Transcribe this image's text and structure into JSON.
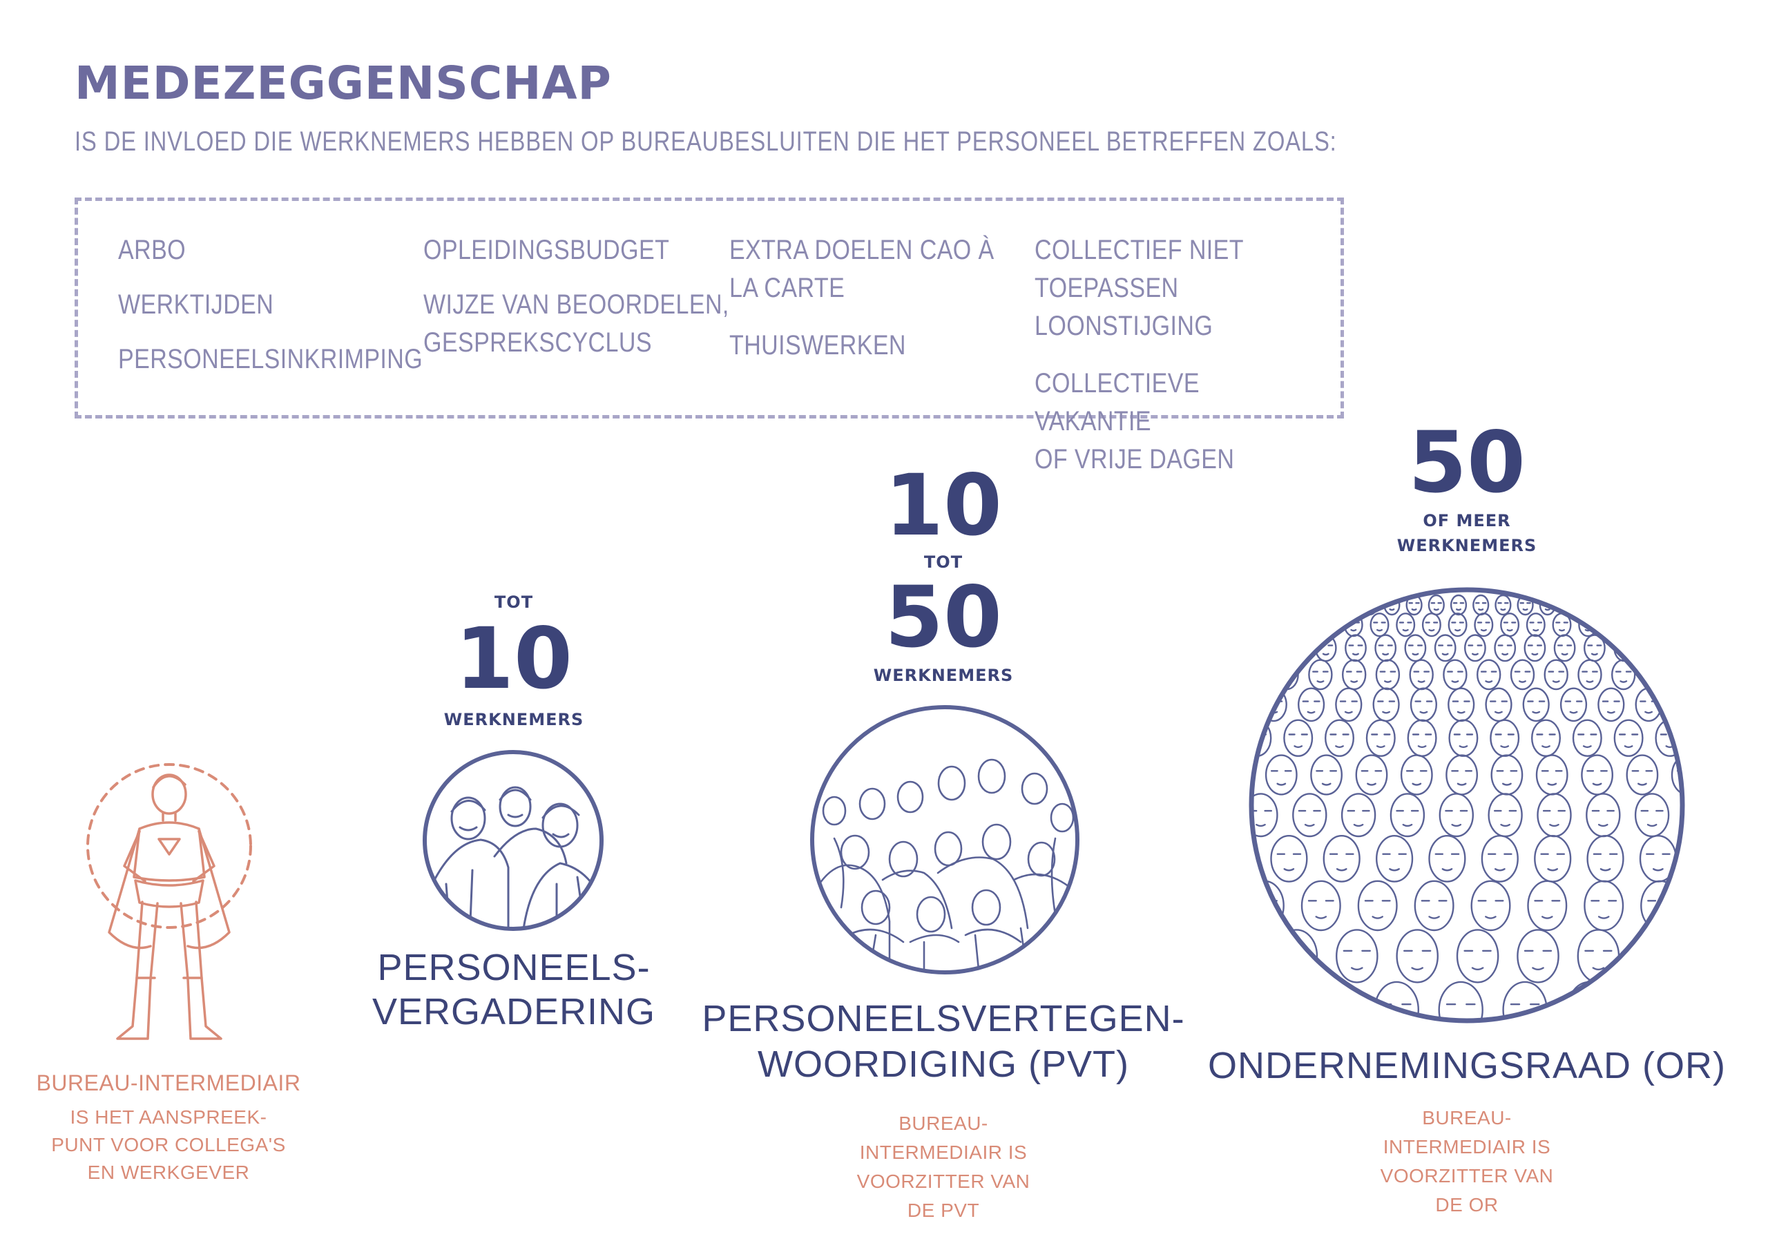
{
  "header": {
    "title": "MEDEZEGGENSCHAP",
    "subtitle": "IS DE INVLOED DIE WERKNEMERS HEBBEN OP BUREAUBESLUITEN DIE HET PERSONEEL BETREFFEN ZOALS:"
  },
  "topics": {
    "col1": [
      "ARBO",
      "WERKTIJDEN",
      "PERSONEELSINKRIMPING"
    ],
    "col2": [
      "OPLEIDINGSBUDGET",
      "WIJZE VAN BEOORDELEN,\nGESPREKSCYCLUS"
    ],
    "col3": [
      "EXTRA DOELEN CAO À\nLA CARTE",
      "THUISWERKEN"
    ],
    "col4": [
      "COLLECTIEF NIET\nTOEPASSEN LOONSTIJGING",
      "COLLECTIEVE VAKANTIE\nOF VRIJE DAGEN"
    ]
  },
  "intermediary": {
    "label": "BUREAU-INTERMEDIAIR",
    "note": "IS HET AANSPREEK-\nPUNT VOOR COLLEGA'S\nEN WERKGEVER"
  },
  "pv": {
    "prefix": "TOT",
    "number": "10",
    "unit": "WERKNEMERS",
    "label_line1": "PERSONEELS-",
    "label_line2": "VERGADERING"
  },
  "pvt": {
    "number_from": "10",
    "connector": "TOT",
    "number_to": "50",
    "unit": "WERKNEMERS",
    "label_line1": "PERSONEELSVERTEGEN-",
    "label_line2": "WOORDIGING (PVT)",
    "note": "BUREAU-\nINTERMEDIAIR IS\nVOORZITTER VAN\nDE PVT"
  },
  "or": {
    "number": "50",
    "suffix_line1": "OF MEER",
    "suffix_line2": "WERKNEMERS",
    "label": "ONDERNEMINGSRAAD (OR)",
    "note": "BUREAU-\nINTERMEDIAIR IS\nVOORZITTER VAN\nDE OR"
  },
  "colors": {
    "title": "#6d6b9e",
    "topic_text": "#8b89b0",
    "navy": "#3c4478",
    "illustration": "#5a6296",
    "coral": "#d98b77"
  },
  "icons": [
    "superhero-illustration",
    "small-group-illustration",
    "medium-group-illustration",
    "crowd-illustration"
  ]
}
